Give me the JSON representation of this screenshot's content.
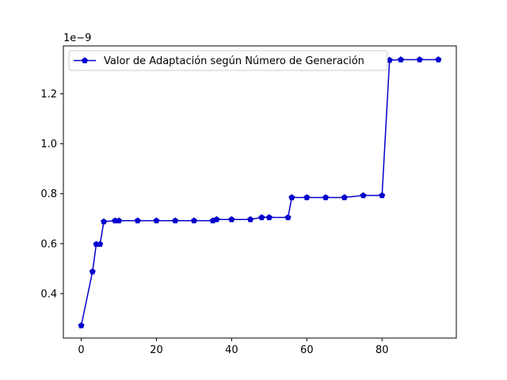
{
  "chart_data": {
    "type": "line",
    "title": "",
    "xlabel": "",
    "ylabel": "",
    "y_offset_label": "1e−9",
    "xlim": [
      -4.75,
      99.75
    ],
    "ylim": [
      0.222,
      1.392
    ],
    "xticks": [
      0,
      20,
      40,
      60,
      80
    ],
    "xtick_labels": [
      "0",
      "20",
      "40",
      "60",
      "80"
    ],
    "yticks": [
      0.4,
      0.6,
      0.8,
      1.0,
      1.2
    ],
    "ytick_labels": [
      "0.4",
      "0.6",
      "0.8",
      "1.0",
      "1.2"
    ],
    "legend_position": "upper-left",
    "colors": {
      "series": "#0000cc",
      "axes": "#000000"
    },
    "series": [
      {
        "name": "Valor de Adaptación según Número de Generación",
        "marker": "pentagon",
        "x": [
          0,
          3,
          4,
          5,
          6,
          9,
          10,
          15,
          20,
          25,
          30,
          35,
          36,
          40,
          45,
          48,
          50,
          55,
          56,
          60,
          65,
          70,
          75,
          80,
          82,
          85,
          90,
          95
        ],
        "y": [
          0.272,
          0.488,
          0.598,
          0.598,
          0.688,
          0.692,
          0.692,
          0.692,
          0.692,
          0.692,
          0.692,
          0.692,
          0.697,
          0.697,
          0.697,
          0.705,
          0.705,
          0.705,
          0.785,
          0.785,
          0.785,
          0.785,
          0.793,
          0.793,
          1.335,
          1.337,
          1.337,
          1.337
        ]
      }
    ]
  }
}
